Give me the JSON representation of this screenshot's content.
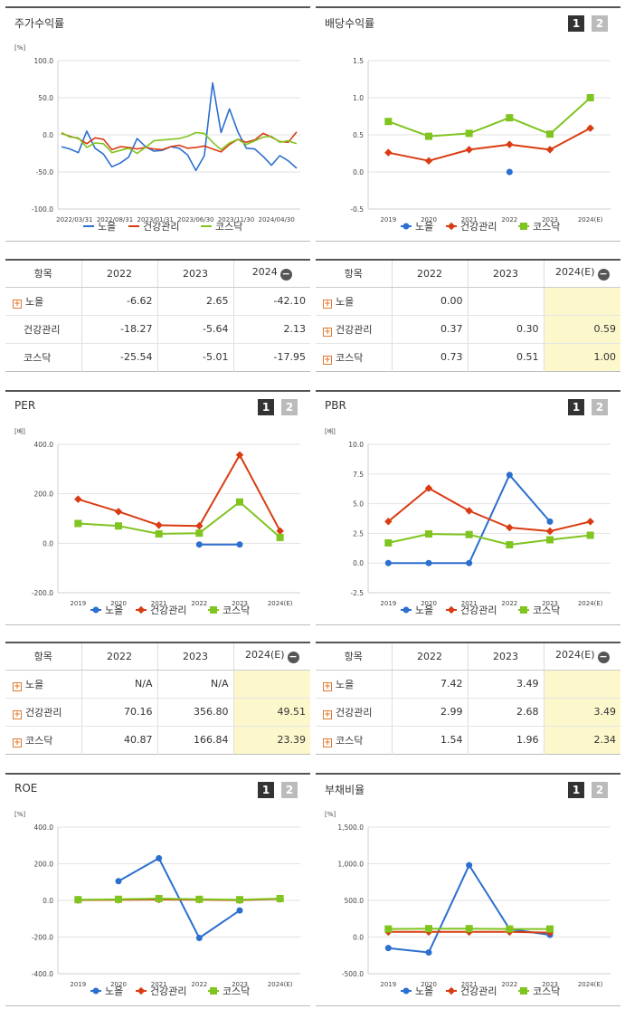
{
  "colors": {
    "nohl": "#2b6fcf",
    "health": "#d93c12",
    "kosdaq": "#7fc41f"
  },
  "pagination": {
    "page1": "1",
    "page2": "2"
  },
  "legend": [
    "노을",
    "건강관리",
    "코스닥"
  ],
  "stock_panel": {
    "title": "주가수익률"
  },
  "dividend_panel": {
    "title": "배당수익률"
  },
  "per_panel": {
    "title": "PER"
  },
  "pbr_panel": {
    "title": "PBR"
  },
  "roe_panel": {
    "title": "ROE"
  },
  "debt_panel": {
    "title": "부채비율"
  },
  "chart_data": [
    {
      "id": "stock",
      "type": "line",
      "title": "주가수익률",
      "unit": "[%]",
      "ylim": [
        -100,
        100
      ],
      "yticks": [
        "100.0",
        "50.0",
        "0.0",
        "-50.0",
        "-100.0"
      ],
      "x_labels": [
        "2022/03/31",
        "2022/08/31",
        "2023/01/31",
        "2023/06/30",
        "2023/11/30",
        "2024/04/30"
      ],
      "series": [
        {
          "name": "노을",
          "values": [
            -16,
            -19,
            -24,
            5,
            -18,
            -26,
            -43,
            -38,
            -30,
            -5,
            -16,
            -22,
            -21,
            -16,
            -18,
            -27,
            -48,
            -28,
            70,
            3,
            35,
            4,
            -18,
            -19,
            -29,
            -41,
            -28,
            -35,
            -45
          ]
        },
        {
          "name": "건강관리",
          "values": [
            2,
            -2,
            -5,
            -12,
            -4,
            -6,
            -20,
            -16,
            -17,
            -19,
            -17,
            -19,
            -20,
            -16,
            -14,
            -18,
            -17,
            -15,
            -19,
            -23,
            -13,
            -6,
            -10,
            -7,
            2,
            -3,
            -9,
            -10,
            4
          ]
        },
        {
          "name": "코스닥",
          "values": [
            3,
            -3,
            -4,
            -17,
            -11,
            -12,
            -24,
            -21,
            -18,
            -25,
            -17,
            -8,
            -7,
            -6,
            -5,
            -2,
            3,
            2,
            -10,
            -20,
            -11,
            -6,
            -13,
            -8,
            -3,
            -2,
            -10,
            -8,
            -12
          ]
        }
      ],
      "grid": true,
      "legend": "bottom"
    },
    {
      "id": "dividend",
      "type": "line",
      "title": "배당수익률",
      "ylim": [
        -0.5,
        1.5
      ],
      "yticks": [
        "1.5",
        "1.0",
        "0.5",
        "0.0",
        "-0.5"
      ],
      "categories": [
        "2019",
        "2020",
        "2021",
        "2022",
        "2023",
        "2024(E)"
      ],
      "series": [
        {
          "name": "노을",
          "values": [
            null,
            null,
            null,
            0.0,
            null,
            null
          ]
        },
        {
          "name": "건강관리",
          "values": [
            0.26,
            0.15,
            0.3,
            0.37,
            0.3,
            0.59
          ]
        },
        {
          "name": "코스닥",
          "values": [
            0.68,
            0.48,
            0.52,
            0.73,
            0.51,
            1.0
          ]
        }
      ],
      "grid": true,
      "legend": "bottom"
    },
    {
      "id": "per",
      "type": "line",
      "title": "PER",
      "unit": "[배]",
      "ylim": [
        -200,
        400
      ],
      "yticks": [
        "400.0",
        "200.0",
        "0.0",
        "-200.0"
      ],
      "categories": [
        "2019",
        "2020",
        "2021",
        "2022",
        "2023",
        "2024(E)"
      ],
      "series": [
        {
          "name": "노을",
          "values": [
            null,
            null,
            null,
            -5,
            -5,
            null
          ]
        },
        {
          "name": "건강관리",
          "values": [
            178,
            128,
            73,
            70.16,
            356.8,
            49.51
          ]
        },
        {
          "name": "코스닥",
          "values": [
            80,
            70,
            38,
            40.87,
            166.84,
            23.39
          ]
        }
      ],
      "grid": true,
      "legend": "bottom"
    },
    {
      "id": "pbr",
      "type": "line",
      "title": "PBR",
      "unit": "[배]",
      "ylim": [
        -2.5,
        10
      ],
      "yticks": [
        "10.0",
        "7.5",
        "5.0",
        "2.5",
        "0.0",
        "-2.5"
      ],
      "categories": [
        "2019",
        "2020",
        "2021",
        "2022",
        "2023",
        "2024(E)"
      ],
      "series": [
        {
          "name": "노을",
          "values": [
            0.0,
            0.0,
            0.0,
            7.42,
            3.49,
            null
          ]
        },
        {
          "name": "건강관리",
          "values": [
            3.5,
            6.3,
            4.4,
            2.99,
            2.68,
            3.49
          ]
        },
        {
          "name": "코스닥",
          "values": [
            1.7,
            2.45,
            2.4,
            1.54,
            1.96,
            2.34
          ]
        }
      ],
      "grid": true,
      "legend": "bottom"
    },
    {
      "id": "roe",
      "type": "line",
      "title": "ROE",
      "unit": "[%]",
      "ylim": [
        -400,
        400
      ],
      "yticks": [
        "400.0",
        "200.0",
        "0.0",
        "-200.0",
        "-400.0"
      ],
      "categories": [
        "2019",
        "2020",
        "2021",
        "2022",
        "2023",
        "2024(E)"
      ],
      "series": [
        {
          "name": "노을",
          "values": [
            null,
            105,
            230,
            -205,
            -55,
            null
          ]
        },
        {
          "name": "건강관리",
          "values": [
            2,
            3,
            5,
            4,
            1,
            8
          ]
        },
        {
          "name": "코스닥",
          "values": [
            4,
            6,
            10,
            6,
            4,
            10
          ]
        }
      ],
      "grid": true,
      "legend": "bottom"
    },
    {
      "id": "debt",
      "type": "line",
      "title": "부채비율",
      "unit": "[%]",
      "ylim": [
        -500,
        1500
      ],
      "yticks": [
        "1,500.0",
        "1,000.0",
        "500.0",
        "0.0",
        "-500.0"
      ],
      "categories": [
        "2019",
        "2020",
        "2021",
        "2022",
        "2023",
        "2024(E)"
      ],
      "series": [
        {
          "name": "노을",
          "values": [
            -150,
            -210,
            980,
            110,
            30,
            null
          ]
        },
        {
          "name": "건강관리",
          "values": [
            70,
            70,
            70,
            70,
            60,
            null
          ]
        },
        {
          "name": "코스닥",
          "values": [
            110,
            115,
            115,
            110,
            110,
            null
          ]
        }
      ],
      "grid": true,
      "legend": "bottom"
    }
  ],
  "tables": {
    "stock": {
      "header": [
        "항목",
        "2022",
        "2023",
        "2024"
      ],
      "rows": [
        {
          "name": "노을",
          "v": [
            "-6.62",
            "2.65",
            "-42.10"
          ]
        },
        {
          "name": "건강관리",
          "v": [
            "-18.27",
            "-5.64",
            "2.13"
          ]
        },
        {
          "name": "코스닥",
          "v": [
            "-25.54",
            "-5.01",
            "-17.95"
          ]
        }
      ]
    },
    "dividend": {
      "header": [
        "항목",
        "2022",
        "2023",
        "2024(E)"
      ],
      "rows": [
        {
          "name": "노을",
          "v": [
            "0.00",
            "",
            ""
          ]
        },
        {
          "name": "건강관리",
          "v": [
            "0.37",
            "0.30",
            "0.59"
          ]
        },
        {
          "name": "코스닥",
          "v": [
            "0.73",
            "0.51",
            "1.00"
          ]
        }
      ]
    },
    "per": {
      "header": [
        "항목",
        "2022",
        "2023",
        "2024(E)"
      ],
      "rows": [
        {
          "name": "노을",
          "v": [
            "N/A",
            "N/A",
            ""
          ]
        },
        {
          "name": "건강관리",
          "v": [
            "70.16",
            "356.80",
            "49.51"
          ]
        },
        {
          "name": "코스닥",
          "v": [
            "40.87",
            "166.84",
            "23.39"
          ]
        }
      ]
    },
    "pbr": {
      "header": [
        "항목",
        "2022",
        "2023",
        "2024(E)"
      ],
      "rows": [
        {
          "name": "노을",
          "v": [
            "7.42",
            "3.49",
            ""
          ]
        },
        {
          "name": "건강관리",
          "v": [
            "2.99",
            "2.68",
            "3.49"
          ]
        },
        {
          "name": "코스닥",
          "v": [
            "1.54",
            "1.96",
            "2.34"
          ]
        }
      ]
    }
  }
}
